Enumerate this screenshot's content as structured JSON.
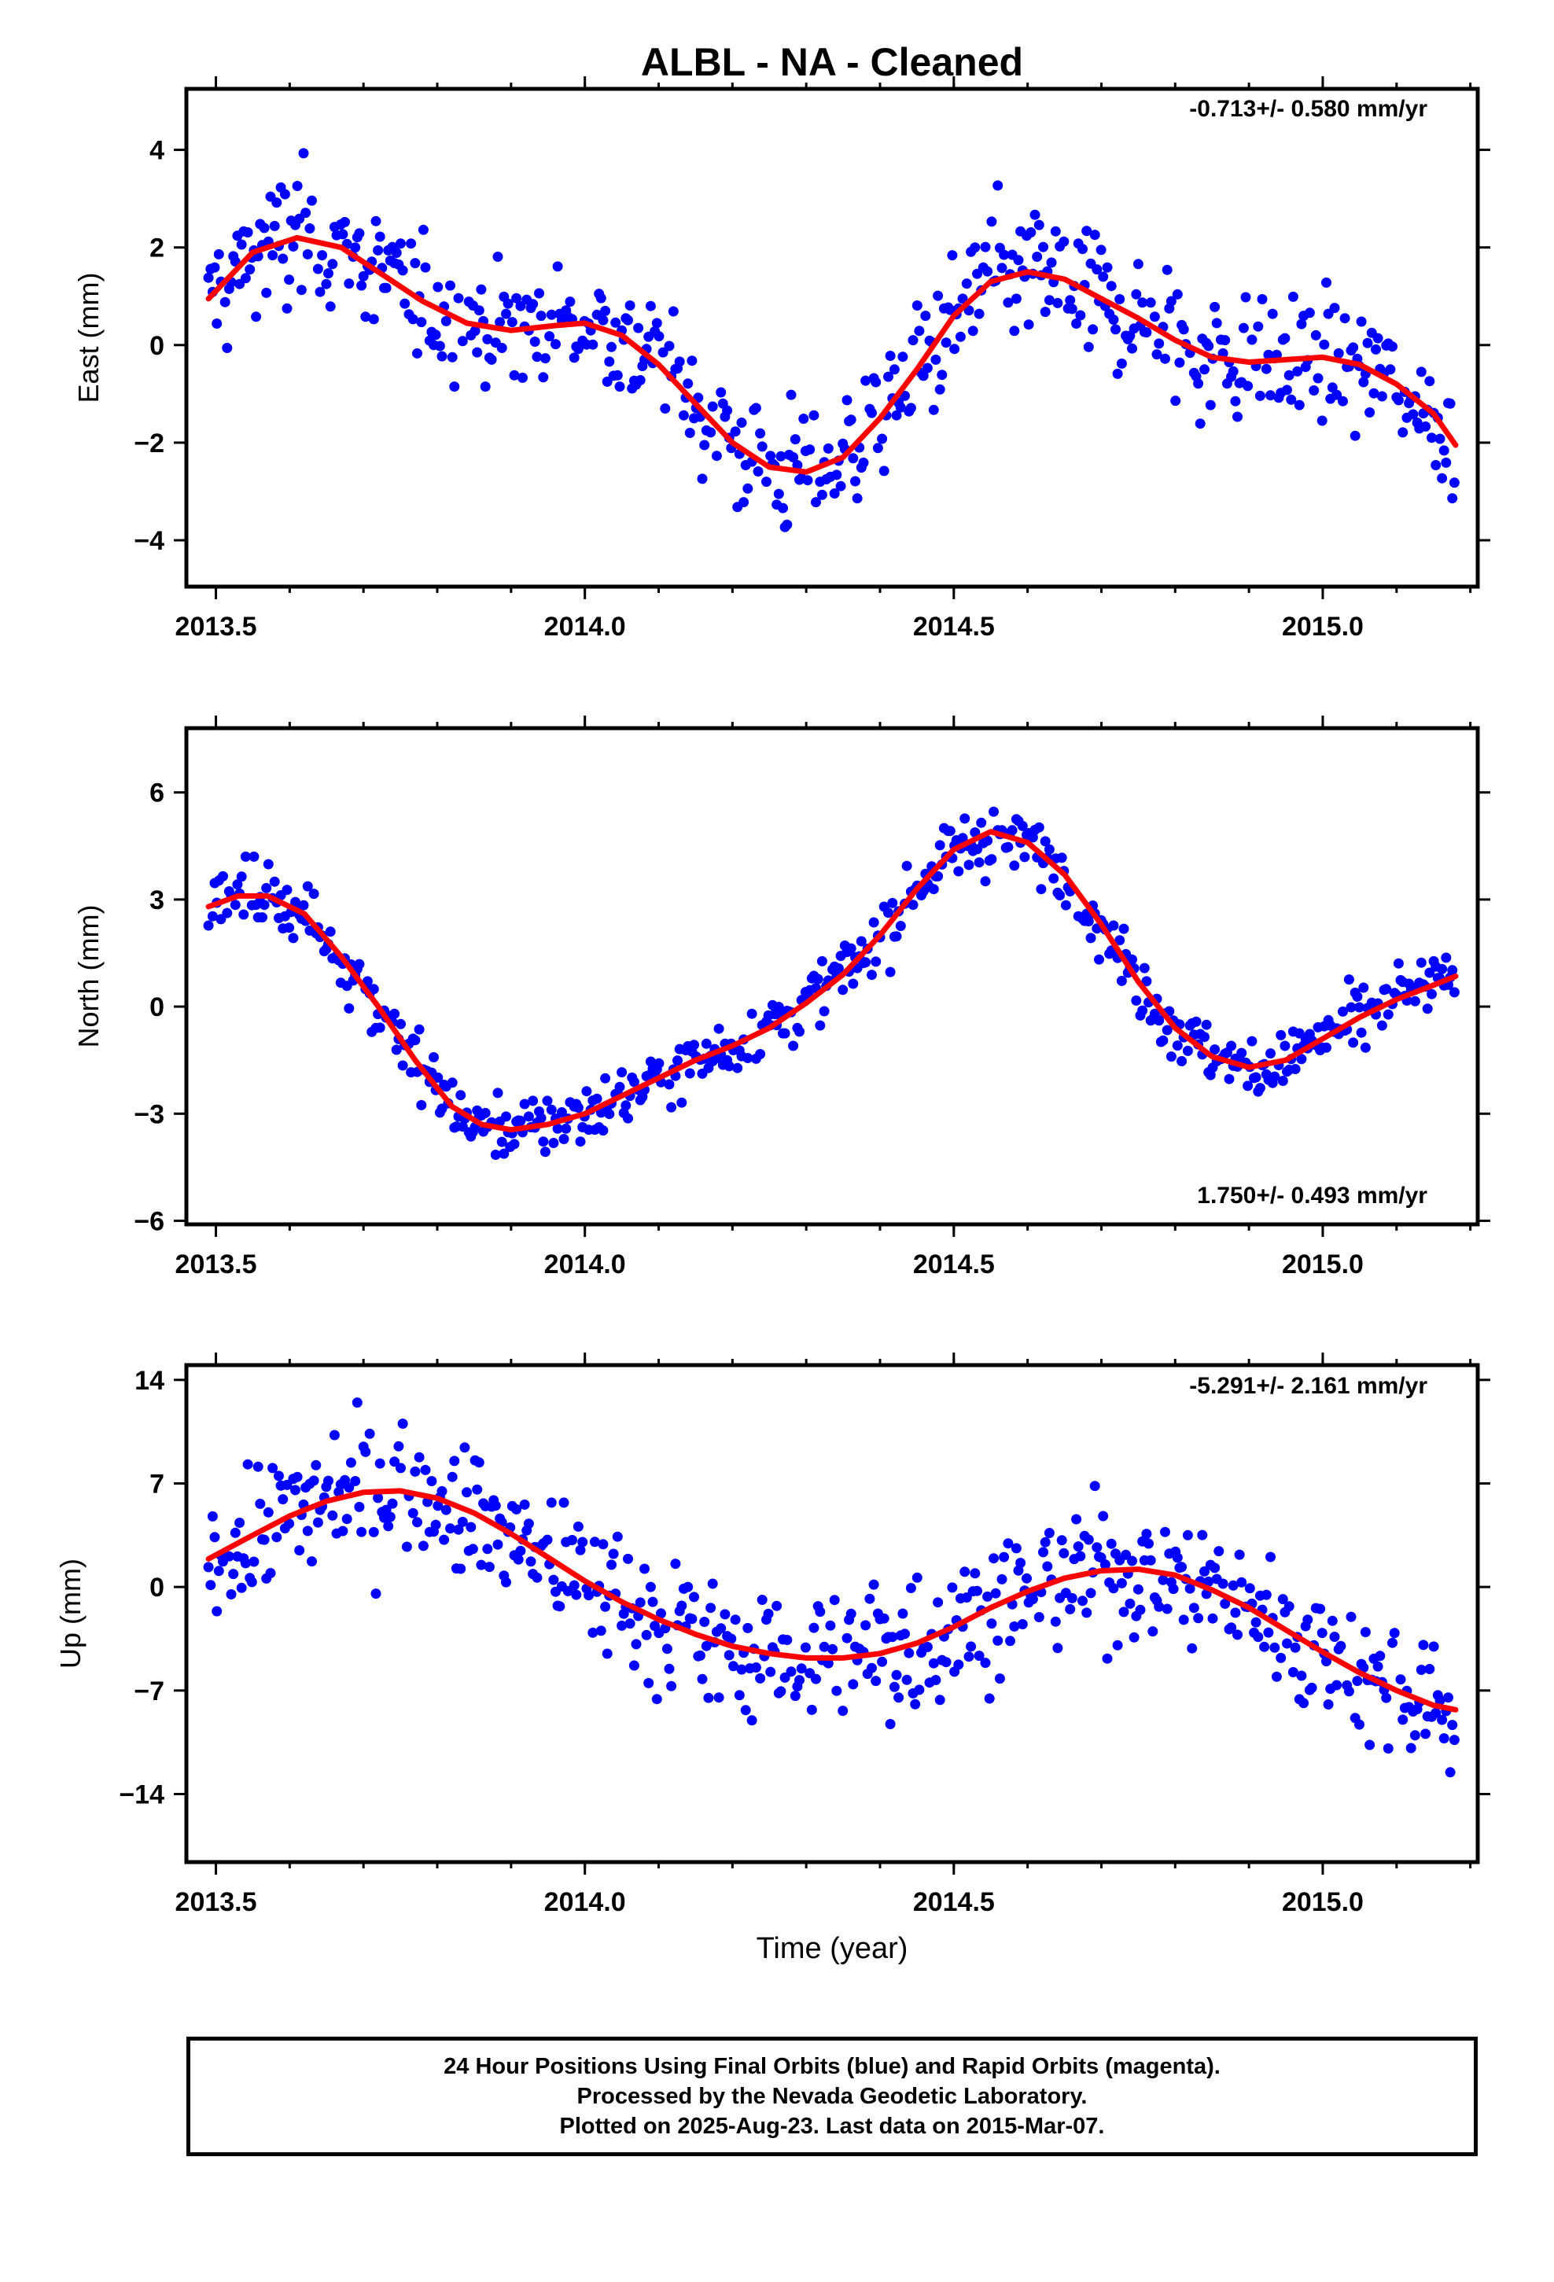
{
  "title": "ALBL  - NA - Cleaned",
  "footer": {
    "line1": "24 Hour Positions Using Final Orbits (blue) and Rapid Orbits (magenta).",
    "line2": "Processed by the Nevada Geodetic Laboratory.",
    "line3": "Plotted on 2025-Aug-23. Last data on 2015-Mar-07."
  },
  "colors": {
    "points": "#0000ff",
    "fit": "#ff0000"
  },
  "chart_data": [
    {
      "type": "scatter",
      "ylabel": "East (mm)",
      "xlabel": "",
      "rate": "-0.713+/- 0.580 mm/yr",
      "rate_position": "top-right",
      "xlim": [
        2013.46,
        2015.21
      ],
      "ylim": [
        -4.95,
        5.25
      ],
      "xticks": [
        2013.5,
        2014.0,
        2014.5,
        2015.0
      ],
      "xtick_labels": [
        "2013.5",
        "2014.0",
        "2014.5",
        "2015.0"
      ],
      "yticks": [
        -4,
        -2,
        0,
        2,
        4
      ],
      "ytick_labels": [
        "−4",
        "−2",
        "0",
        "2",
        "4"
      ],
      "fit_points": [
        [
          2013.49,
          0.95
        ],
        [
          2013.55,
          1.9
        ],
        [
          2013.61,
          2.2
        ],
        [
          2013.67,
          2.0
        ],
        [
          2013.72,
          1.5
        ],
        [
          2013.78,
          0.9
        ],
        [
          2013.84,
          0.45
        ],
        [
          2013.9,
          0.3
        ],
        [
          2013.96,
          0.4
        ],
        [
          2014.0,
          0.45
        ],
        [
          2014.05,
          0.2
        ],
        [
          2014.1,
          -0.4
        ],
        [
          2014.15,
          -1.2
        ],
        [
          2014.2,
          -2.0
        ],
        [
          2014.25,
          -2.5
        ],
        [
          2014.3,
          -2.6
        ],
        [
          2014.35,
          -2.3
        ],
        [
          2014.4,
          -1.5
        ],
        [
          2014.45,
          -0.5
        ],
        [
          2014.5,
          0.6
        ],
        [
          2014.55,
          1.3
        ],
        [
          2014.6,
          1.5
        ],
        [
          2014.65,
          1.35
        ],
        [
          2014.7,
          0.95
        ],
        [
          2014.75,
          0.55
        ],
        [
          2014.8,
          0.1
        ],
        [
          2014.85,
          -0.25
        ],
        [
          2014.9,
          -0.35
        ],
        [
          2014.95,
          -0.3
        ],
        [
          2015.0,
          -0.25
        ],
        [
          2015.05,
          -0.4
        ],
        [
          2015.1,
          -0.8
        ],
        [
          2015.15,
          -1.4
        ],
        [
          2015.18,
          -2.05
        ]
      ],
      "series": [
        {
          "name": "",
          "color": "#0000ff",
          "x": [],
          "y": []
        }
      ],
      "grid": false
    },
    {
      "type": "scatter",
      "ylabel": "North (mm)",
      "xlabel": "",
      "rate": "1.750+/- 0.493 mm/yr",
      "rate_position": "bottom-right",
      "xlim": [
        2013.46,
        2015.21
      ],
      "ylim": [
        -6.1,
        7.8
      ],
      "xticks": [
        2013.5,
        2014.0,
        2014.5,
        2015.0
      ],
      "xtick_labels": [
        "2013.5",
        "2014.0",
        "2014.5",
        "2015.0"
      ],
      "yticks": [
        -6,
        -3,
        0,
        3,
        6
      ],
      "ytick_labels": [
        "−6",
        "−3",
        "0",
        "3",
        "6"
      ],
      "fit_points": [
        [
          2013.49,
          2.8
        ],
        [
          2013.53,
          3.1
        ],
        [
          2013.57,
          3.1
        ],
        [
          2013.62,
          2.6
        ],
        [
          2013.67,
          1.4
        ],
        [
          2013.72,
          0.0
        ],
        [
          2013.77,
          -1.5
        ],
        [
          2013.82,
          -2.8
        ],
        [
          2013.86,
          -3.3
        ],
        [
          2013.9,
          -3.45
        ],
        [
          2013.95,
          -3.3
        ],
        [
          2014.0,
          -3.0
        ],
        [
          2014.05,
          -2.5
        ],
        [
          2014.1,
          -2.0
        ],
        [
          2014.15,
          -1.5
        ],
        [
          2014.2,
          -1.1
        ],
        [
          2014.25,
          -0.6
        ],
        [
          2014.3,
          0.1
        ],
        [
          2014.35,
          0.9
        ],
        [
          2014.4,
          2.0
        ],
        [
          2014.45,
          3.3
        ],
        [
          2014.5,
          4.4
        ],
        [
          2014.55,
          4.9
        ],
        [
          2014.6,
          4.6
        ],
        [
          2014.65,
          3.7
        ],
        [
          2014.7,
          2.3
        ],
        [
          2014.75,
          0.7
        ],
        [
          2014.8,
          -0.6
        ],
        [
          2014.85,
          -1.4
        ],
        [
          2014.9,
          -1.7
        ],
        [
          2014.95,
          -1.5
        ],
        [
          2015.0,
          -0.9
        ],
        [
          2015.05,
          -0.3
        ],
        [
          2015.1,
          0.2
        ],
        [
          2015.15,
          0.6
        ],
        [
          2015.18,
          0.85
        ]
      ],
      "series": [
        {
          "name": "",
          "color": "#0000ff",
          "x": [],
          "y": []
        }
      ],
      "grid": false
    },
    {
      "type": "scatter",
      "ylabel": "Up (mm)",
      "xlabel": "Time (year)",
      "rate": "-5.291+/- 2.161 mm/yr",
      "rate_position": "top-right",
      "xlim": [
        2013.46,
        2015.21
      ],
      "ylim": [
        -18.6,
        15.0
      ],
      "xticks": [
        2013.5,
        2014.0,
        2014.5,
        2015.0
      ],
      "xtick_labels": [
        "2013.5",
        "2014.0",
        "2014.5",
        "2015.0"
      ],
      "yticks": [
        -14,
        -7,
        0,
        7,
        14
      ],
      "ytick_labels": [
        "−14",
        "−7",
        "0",
        "7",
        "14"
      ],
      "fit_points": [
        [
          2013.49,
          1.9
        ],
        [
          2013.55,
          3.5
        ],
        [
          2013.6,
          4.8
        ],
        [
          2013.65,
          5.8
        ],
        [
          2013.7,
          6.4
        ],
        [
          2013.75,
          6.5
        ],
        [
          2013.8,
          6.0
        ],
        [
          2013.85,
          5.0
        ],
        [
          2013.9,
          3.6
        ],
        [
          2013.95,
          2.0
        ],
        [
          2014.0,
          0.4
        ],
        [
          2014.05,
          -1.0
        ],
        [
          2014.1,
          -2.2
        ],
        [
          2014.15,
          -3.2
        ],
        [
          2014.2,
          -4.0
        ],
        [
          2014.25,
          -4.5
        ],
        [
          2014.3,
          -4.8
        ],
        [
          2014.35,
          -4.8
        ],
        [
          2014.4,
          -4.5
        ],
        [
          2014.45,
          -3.8
        ],
        [
          2014.5,
          -2.7
        ],
        [
          2014.55,
          -1.4
        ],
        [
          2014.6,
          -0.3
        ],
        [
          2014.65,
          0.6
        ],
        [
          2014.7,
          1.1
        ],
        [
          2014.75,
          1.2
        ],
        [
          2014.8,
          0.8
        ],
        [
          2014.85,
          -0.2
        ],
        [
          2014.9,
          -1.4
        ],
        [
          2014.95,
          -2.9
        ],
        [
          2015.0,
          -4.4
        ],
        [
          2015.05,
          -5.8
        ],
        [
          2015.1,
          -7.0
        ],
        [
          2015.15,
          -8.0
        ],
        [
          2015.18,
          -8.3
        ]
      ],
      "series": [
        {
          "name": "",
          "color": "#0000ff",
          "x": [],
          "y": []
        }
      ],
      "grid": false
    }
  ]
}
